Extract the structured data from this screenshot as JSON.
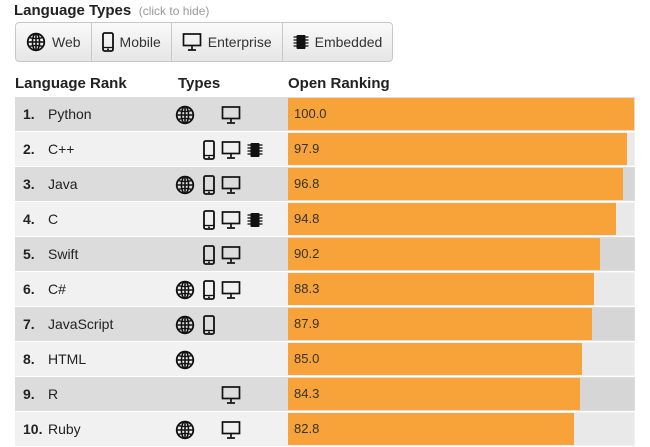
{
  "header": {
    "title": "Language Types",
    "hint": "(click to hide)"
  },
  "filters": [
    {
      "label": "Web",
      "icon": "globe-icon"
    },
    {
      "label": "Mobile",
      "icon": "mobile-icon"
    },
    {
      "label": "Enterprise",
      "icon": "desktop-icon"
    },
    {
      "label": "Embedded",
      "icon": "chip-icon"
    }
  ],
  "columns": {
    "rank": "Language Rank",
    "types": "Types",
    "open": "Open Ranking"
  },
  "colors": {
    "bar": "#f8a33a",
    "row_light": "#f1f1f1",
    "row_dark": "#dcdcdc"
  },
  "rows": [
    {
      "rank": "1.",
      "lang": "Python",
      "types": [
        "web",
        "enterprise"
      ],
      "score": "100.0",
      "value": 100.0
    },
    {
      "rank": "2.",
      "lang": "C++",
      "types": [
        "mobile",
        "enterprise",
        "embedded"
      ],
      "score": "97.9",
      "value": 97.9
    },
    {
      "rank": "3.",
      "lang": "Java",
      "types": [
        "web",
        "mobile",
        "enterprise"
      ],
      "score": "96.8",
      "value": 96.8
    },
    {
      "rank": "4.",
      "lang": "C",
      "types": [
        "mobile",
        "enterprise",
        "embedded"
      ],
      "score": "94.8",
      "value": 94.8
    },
    {
      "rank": "5.",
      "lang": "Swift",
      "types": [
        "mobile",
        "enterprise"
      ],
      "score": "90.2",
      "value": 90.2
    },
    {
      "rank": "6.",
      "lang": "C#",
      "types": [
        "web",
        "mobile",
        "enterprise"
      ],
      "score": "88.3",
      "value": 88.3
    },
    {
      "rank": "7.",
      "lang": "JavaScript",
      "types": [
        "web",
        "mobile"
      ],
      "score": "87.9",
      "value": 87.9
    },
    {
      "rank": "8.",
      "lang": "HTML",
      "types": [
        "web"
      ],
      "score": "85.0",
      "value": 85.0
    },
    {
      "rank": "9.",
      "lang": "R",
      "types": [
        "enterprise"
      ],
      "score": "84.3",
      "value": 84.3
    },
    {
      "rank": "10.",
      "lang": "Ruby",
      "types": [
        "web",
        "enterprise"
      ],
      "score": "82.8",
      "value": 82.8
    }
  ]
}
